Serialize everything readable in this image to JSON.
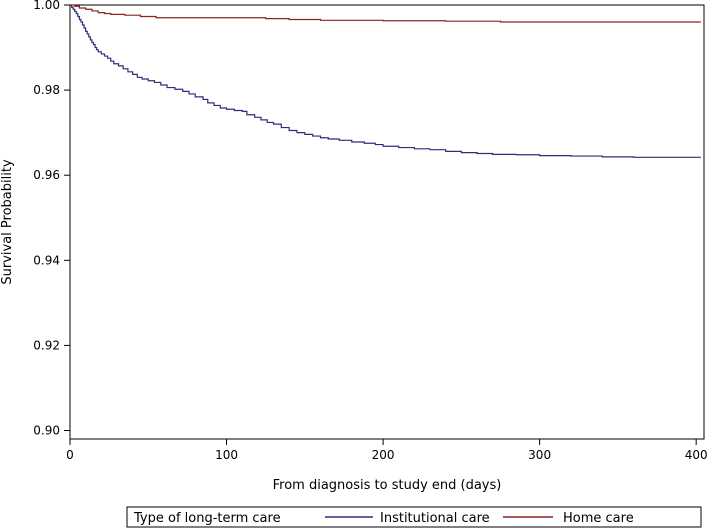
{
  "chart_data": {
    "type": "line",
    "step": true,
    "title": "",
    "xlabel": "From diagnosis to study end (days)",
    "ylabel": "Survival Probability",
    "xlim": [
      0,
      405
    ],
    "ylim": [
      0.898,
      1.0
    ],
    "xticks": [
      0,
      100,
      200,
      300,
      400
    ],
    "xtick_labels": [
      "0",
      "100",
      "200",
      "300",
      "400"
    ],
    "yticks": [
      0.9,
      0.92,
      0.94,
      0.96,
      0.98,
      1.0
    ],
    "ytick_labels": [
      "0.90",
      "0.92",
      "0.94",
      "0.96",
      "0.98",
      "1.00"
    ],
    "grid": false,
    "legend": {
      "title": "Type of long-term care",
      "position": "bottom"
    },
    "series": [
      {
        "name": "Institutional care",
        "color": "#2b2f7a",
        "points": [
          [
            0,
            1.0
          ],
          [
            1,
            0.9995
          ],
          [
            2,
            0.999
          ],
          [
            3,
            0.9985
          ],
          [
            4,
            0.998
          ],
          [
            5,
            0.9973
          ],
          [
            6,
            0.9966
          ],
          [
            7,
            0.996
          ],
          [
            8,
            0.9953
          ],
          [
            9,
            0.9946
          ],
          [
            10,
            0.9938
          ],
          [
            11,
            0.9932
          ],
          [
            12,
            0.9925
          ],
          [
            13,
            0.9918
          ],
          [
            14,
            0.9912
          ],
          [
            15,
            0.9907
          ],
          [
            16,
            0.99
          ],
          [
            17,
            0.9895
          ],
          [
            18,
            0.989
          ],
          [
            20,
            0.9885
          ],
          [
            22,
            0.988
          ],
          [
            24,
            0.9875
          ],
          [
            26,
            0.9868
          ],
          [
            28,
            0.9862
          ],
          [
            31,
            0.9857
          ],
          [
            34,
            0.985
          ],
          [
            37,
            0.9843
          ],
          [
            40,
            0.9837
          ],
          [
            43,
            0.983
          ],
          [
            46,
            0.9826
          ],
          [
            50,
            0.9822
          ],
          [
            54,
            0.9818
          ],
          [
            58,
            0.9812
          ],
          [
            62,
            0.9806
          ],
          [
            67,
            0.9802
          ],
          [
            72,
            0.9797
          ],
          [
            76,
            0.9791
          ],
          [
            80,
            0.9784
          ],
          [
            85,
            0.9778
          ],
          [
            88,
            0.977
          ],
          [
            92,
            0.9764
          ],
          [
            96,
            0.9758
          ],
          [
            100,
            0.9755
          ],
          [
            105,
            0.9752
          ],
          [
            110,
            0.975
          ],
          [
            113,
            0.9742
          ],
          [
            118,
            0.9736
          ],
          [
            122,
            0.973
          ],
          [
            126,
            0.9724
          ],
          [
            130,
            0.972
          ],
          [
            135,
            0.9712
          ],
          [
            140,
            0.9705
          ],
          [
            145,
            0.97
          ],
          [
            150,
            0.9696
          ],
          [
            155,
            0.9692
          ],
          [
            160,
            0.9688
          ],
          [
            165,
            0.9685
          ],
          [
            172,
            0.9682
          ],
          [
            180,
            0.9678
          ],
          [
            188,
            0.9675
          ],
          [
            195,
            0.9672
          ],
          [
            200,
            0.9668
          ],
          [
            210,
            0.9665
          ],
          [
            220,
            0.9662
          ],
          [
            230,
            0.966
          ],
          [
            240,
            0.9656
          ],
          [
            250,
            0.9653
          ],
          [
            260,
            0.9651
          ],
          [
            270,
            0.9649
          ],
          [
            285,
            0.9648
          ],
          [
            300,
            0.9646
          ],
          [
            320,
            0.9645
          ],
          [
            340,
            0.9643
          ],
          [
            360,
            0.9642
          ],
          [
            380,
            0.9642
          ],
          [
            403,
            0.9642
          ]
        ]
      },
      {
        "name": "Home care",
        "color": "#8b2323",
        "points": [
          [
            0,
            1.0
          ],
          [
            3,
            0.9997
          ],
          [
            6,
            0.9993
          ],
          [
            10,
            0.999
          ],
          [
            14,
            0.9986
          ],
          [
            18,
            0.9982
          ],
          [
            22,
            0.998
          ],
          [
            26,
            0.9978
          ],
          [
            35,
            0.9976
          ],
          [
            45,
            0.9973
          ],
          [
            55,
            0.997
          ],
          [
            75,
            0.997
          ],
          [
            100,
            0.997
          ],
          [
            125,
            0.9968
          ],
          [
            140,
            0.9966
          ],
          [
            160,
            0.9964
          ],
          [
            200,
            0.9963
          ],
          [
            240,
            0.9962
          ],
          [
            275,
            0.996
          ],
          [
            300,
            0.996
          ],
          [
            340,
            0.996
          ],
          [
            403,
            0.996
          ]
        ]
      }
    ]
  }
}
